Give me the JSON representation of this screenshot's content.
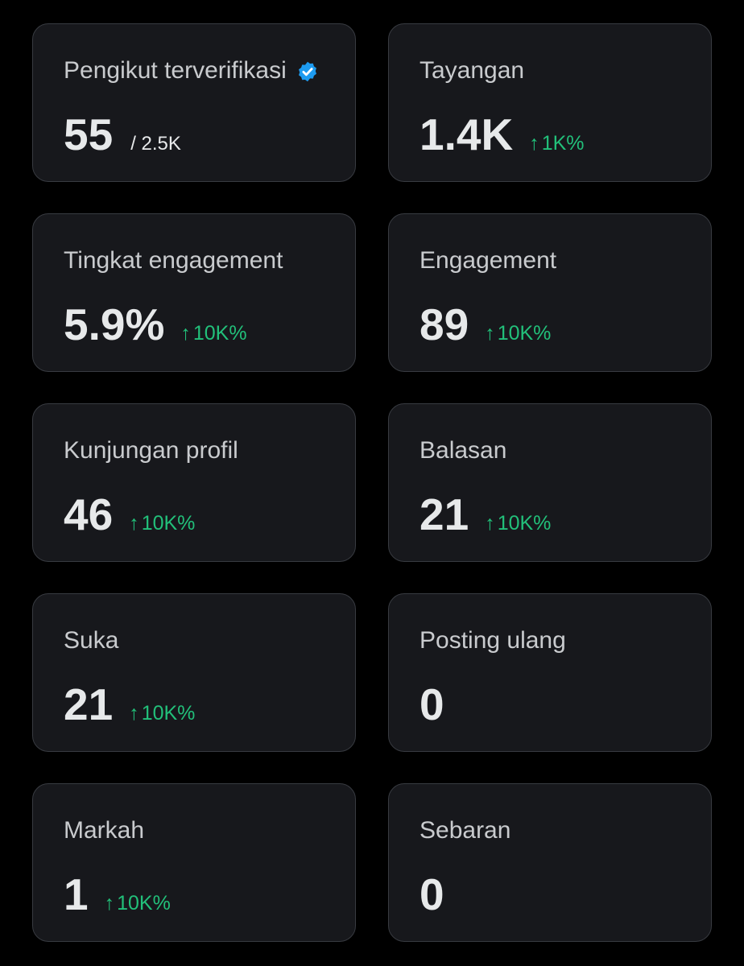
{
  "colors": {
    "background": "#000000",
    "card": "#17181c",
    "border": "#383b41",
    "label": "#c9cbce",
    "value": "#e7e9ea",
    "positive": "#22c07a",
    "verified": "#1d9bf0"
  },
  "cards": [
    {
      "label": "Pengikut terverifikasi",
      "icon": "verified-badge-icon",
      "value": "55",
      "suffix": "/ 2.5K",
      "delta": ""
    },
    {
      "label": "Tayangan",
      "value": "1.4K",
      "suffix": "",
      "delta": "1K%"
    },
    {
      "label": "Tingkat engagement",
      "value": "5.9%",
      "suffix": "",
      "delta": "10K%"
    },
    {
      "label": "Engagement",
      "value": "89",
      "suffix": "",
      "delta": "10K%"
    },
    {
      "label": "Kunjungan profil",
      "value": "46",
      "suffix": "",
      "delta": "10K%"
    },
    {
      "label": "Balasan",
      "value": "21",
      "suffix": "",
      "delta": "10K%"
    },
    {
      "label": "Suka",
      "value": "21",
      "suffix": "",
      "delta": "10K%"
    },
    {
      "label": "Posting ulang",
      "value": "0",
      "suffix": "",
      "delta": ""
    },
    {
      "label": "Markah",
      "value": "1",
      "suffix": "",
      "delta": "10K%"
    },
    {
      "label": "Sebaran",
      "value": "0",
      "suffix": "",
      "delta": ""
    }
  ],
  "delta_arrow": "↑"
}
